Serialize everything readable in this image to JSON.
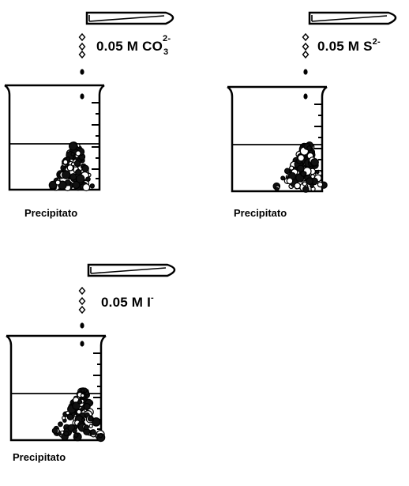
{
  "panels": [
    {
      "id": "carbonate",
      "reagent_prefix": "0.05 M CO",
      "reagent_subscript": "3",
      "reagent_superscript": "2-",
      "caption": "Precipitato"
    },
    {
      "id": "sulfide",
      "reagent_prefix": "0.05 M S",
      "reagent_subscript": "",
      "reagent_superscript": "2-",
      "caption": "Precipitato"
    },
    {
      "id": "iodide",
      "reagent_prefix": "0.05 M I",
      "reagent_subscript": "",
      "reagent_superscript": "-",
      "caption": "Precipitato"
    }
  ]
}
